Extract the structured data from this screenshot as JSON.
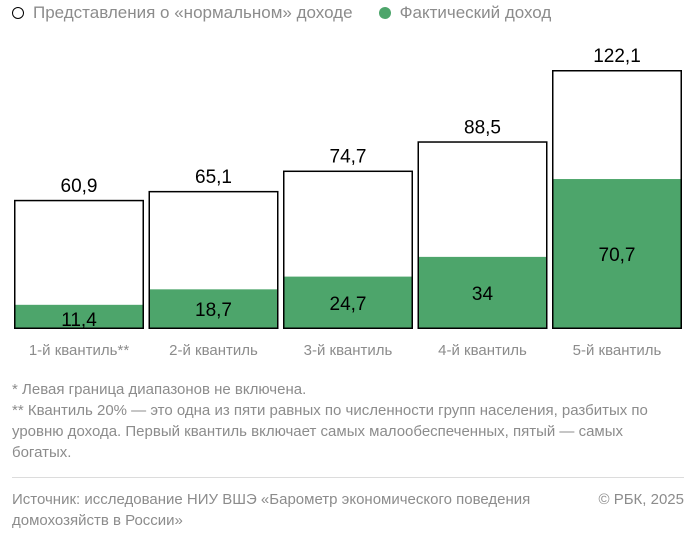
{
  "legend": {
    "normal_label": "Представления о «нормальном» доходе",
    "actual_label": "Фактический доход"
  },
  "colors": {
    "actual": "#4da56b",
    "normal_fill": "#ffffff",
    "outline": "#000000",
    "muted_text": "#8c8c8c"
  },
  "chart_data": {
    "type": "bar",
    "categories": [
      "1-й квантиль**",
      "2-й квантиль",
      "3-й квантиль",
      "4-й квантиль",
      "5-й квантиль"
    ],
    "series": [
      {
        "name": "Представления о «нормальном» доходе",
        "values": [
          60.9,
          65.1,
          74.7,
          88.5,
          122.1
        ],
        "labels": [
          "60,9",
          "65,1",
          "74,7",
          "88,5",
          "122,1"
        ]
      },
      {
        "name": "Фактический доход",
        "values": [
          11.4,
          18.7,
          24.7,
          34,
          70.7
        ],
        "labels": [
          "11,4",
          "18,7",
          "24,7",
          "34",
          "70,7"
        ]
      }
    ],
    "overlay": true,
    "ylim": [
      0,
      122.1
    ],
    "grid": false,
    "legend_position": "top-left"
  },
  "notes": {
    "line1": "* Левая граница диапазонов не включена.",
    "line2": "** Квантиль 20% — это одна из пяти равных по численности групп населения, разбитых по уровню дохода. Первый квантиль включает самых малообеспеченных, пятый — самых богатых."
  },
  "footer": {
    "source": "Источник: исследование НИУ ВШЭ «Барометр экономического поведения домохозяйств в России»",
    "copyright": "© РБК, 2025"
  }
}
